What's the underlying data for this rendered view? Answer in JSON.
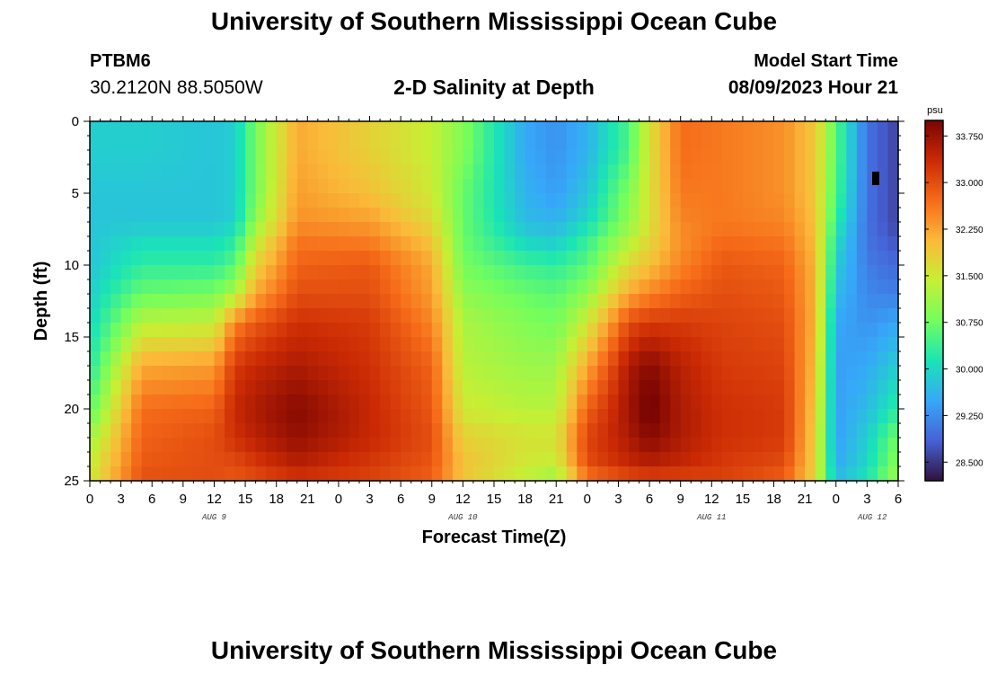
{
  "header": {
    "title": "University of Southern Mississippi Ocean Cube",
    "station_id": "PTBM6",
    "coordinates": "30.2120N  88.5050W",
    "subtitle": "2-D Salinity at Depth",
    "model_start_label": "Model Start Time",
    "model_start_value": "08/09/2023 Hour 21"
  },
  "footer": {
    "title": "University of Southern Mississippi Ocean Cube"
  },
  "chart_data": {
    "type": "heatmap",
    "title": "2-D Salinity at Depth",
    "xlabel": "Forecast Time(Z)",
    "ylabel": "Depth (ft)",
    "x_unit": "hours since 00Z AUG 9",
    "x_range": [
      0,
      78
    ],
    "y_range": [
      0,
      25
    ],
    "x_tick_values": [
      0,
      3,
      6,
      9,
      12,
      15,
      18,
      21,
      24,
      27,
      30,
      33,
      36,
      39,
      42,
      45,
      48,
      51,
      54,
      57,
      60,
      63,
      66,
      69,
      72,
      75,
      78
    ],
    "x_tick_labels": [
      "0",
      "3",
      "6",
      "9",
      "12",
      "15",
      "18",
      "21",
      "0",
      "3",
      "6",
      "9",
      "12",
      "15",
      "18",
      "21",
      "0",
      "3",
      "6",
      "9",
      "12",
      "15",
      "18",
      "21",
      "0",
      "3",
      "6"
    ],
    "y_ticks": [
      0,
      5,
      10,
      15,
      20,
      25
    ],
    "y_tick_labels": [
      "0",
      "5",
      "10",
      "15",
      "20",
      "25"
    ],
    "date_labels": [
      {
        "label": "AUG 9",
        "x": 12
      },
      {
        "label": "AUG 10",
        "x": 36
      },
      {
        "label": "AUG 11",
        "x": 60
      },
      {
        "label": "AUG 12",
        "x": 75.5
      }
    ],
    "colorbar": {
      "unit": "psu",
      "min": 28.2,
      "max": 34.0,
      "ticks": [
        33.75,
        33.0,
        32.25,
        31.5,
        30.75,
        30.0,
        29.25,
        28.5
      ],
      "tick_labels": [
        "33.750",
        "33.000",
        "32.250",
        "31.500",
        "30.750",
        "30.000",
        "29.250",
        "28.500"
      ],
      "colors": [
        "#30123b",
        "#4661d6",
        "#36a8f9",
        "#1ae4b6",
        "#72fe5e",
        "#c7ef34",
        "#faba39",
        "#f66b19",
        "#cb2a04",
        "#7a0403"
      ]
    },
    "x_knots": [
      0,
      5,
      12,
      14,
      16,
      20,
      27,
      33,
      36,
      42,
      45,
      48,
      52,
      54,
      57,
      61,
      67,
      70,
      72,
      75,
      78
    ],
    "y_knots": [
      0,
      2,
      5,
      7,
      8,
      10,
      12,
      14,
      17,
      20,
      22,
      24,
      25
    ],
    "salinity_grid": [
      [
        29.9,
        29.9,
        29.8,
        29.8,
        29.8,
        29.8,
        29.9,
        30.0,
        30.2,
        30.6,
        31.1,
        31.4,
        31.5
      ],
      [
        29.9,
        29.9,
        29.8,
        29.8,
        30.0,
        30.3,
        30.7,
        31.3,
        32.2,
        32.7,
        32.8,
        32.9,
        33.0
      ],
      [
        29.8,
        29.8,
        29.8,
        29.8,
        30.0,
        30.3,
        30.8,
        31.4,
        32.3,
        32.8,
        33.0,
        33.0,
        33.0
      ],
      [
        29.9,
        29.9,
        29.9,
        29.9,
        30.2,
        30.6,
        31.2,
        32.5,
        33.2,
        33.4,
        33.3,
        33.0,
        32.9
      ],
      [
        30.8,
        30.8,
        30.8,
        31.0,
        31.3,
        31.8,
        32.2,
        32.9,
        33.4,
        33.6,
        33.5,
        33.2,
        33.0
      ],
      [
        32.2,
        32.2,
        32.3,
        32.4,
        32.6,
        32.8,
        33.0,
        33.3,
        33.6,
        33.9,
        33.8,
        33.5,
        33.2
      ],
      [
        31.8,
        31.8,
        32.0,
        32.3,
        32.5,
        32.9,
        33.0,
        33.2,
        33.3,
        33.4,
        33.4,
        33.2,
        33.1
      ],
      [
        31.4,
        31.4,
        31.5,
        31.7,
        31.9,
        32.2,
        32.3,
        32.5,
        32.8,
        32.9,
        33.0,
        32.9,
        32.8
      ],
      [
        30.9,
        30.9,
        30.7,
        30.7,
        30.7,
        30.8,
        31.0,
        31.2,
        31.3,
        31.5,
        31.8,
        32.0,
        31.9
      ],
      [
        29.5,
        29.5,
        29.6,
        29.7,
        29.9,
        30.4,
        30.7,
        30.9,
        31.1,
        31.3,
        31.6,
        31.5,
        31.3
      ],
      [
        29.3,
        29.3,
        29.4,
        29.6,
        29.8,
        30.3,
        30.6,
        30.8,
        31.1,
        31.3,
        31.6,
        31.4,
        31.0
      ],
      [
        29.6,
        29.6,
        29.8,
        30.0,
        30.3,
        30.6,
        31.0,
        31.5,
        32.2,
        32.8,
        33.1,
        33.0,
        32.5
      ],
      [
        30.5,
        30.5,
        30.9,
        31.0,
        31.2,
        31.7,
        32.2,
        33.0,
        33.6,
        33.7,
        33.6,
        33.4,
        32.9
      ],
      [
        31.6,
        31.6,
        31.6,
        31.6,
        31.7,
        32.0,
        32.5,
        33.2,
        33.9,
        34.1,
        33.9,
        33.5,
        33.0
      ],
      [
        32.7,
        32.7,
        32.6,
        32.5,
        32.4,
        32.5,
        32.8,
        33.2,
        33.5,
        33.6,
        33.6,
        33.4,
        33.0
      ],
      [
        32.6,
        32.6,
        32.6,
        32.6,
        32.7,
        32.9,
        33.0,
        33.1,
        33.2,
        33.3,
        33.3,
        33.2,
        33.1
      ],
      [
        32.4,
        32.4,
        32.4,
        32.5,
        32.6,
        32.8,
        32.9,
        33.0,
        33.1,
        33.2,
        33.2,
        33.0,
        32.8
      ],
      [
        31.9,
        31.9,
        31.9,
        32.0,
        32.0,
        32.1,
        32.1,
        32.1,
        32.0,
        31.9,
        31.8,
        31.8,
        31.7
      ],
      [
        30.6,
        30.6,
        30.5,
        30.3,
        30.1,
        29.9,
        29.7,
        29.5,
        29.4,
        29.4,
        29.4,
        29.5,
        29.7
      ],
      [
        29.0,
        29.0,
        29.0,
        29.0,
        29.0,
        29.1,
        29.2,
        29.3,
        29.5,
        29.7,
        29.9,
        30.0,
        30.2
      ],
      [
        28.6,
        28.6,
        28.6,
        28.6,
        28.7,
        28.9,
        29.1,
        29.5,
        29.9,
        30.3,
        30.8,
        31.0,
        31.2
      ]
    ]
  }
}
